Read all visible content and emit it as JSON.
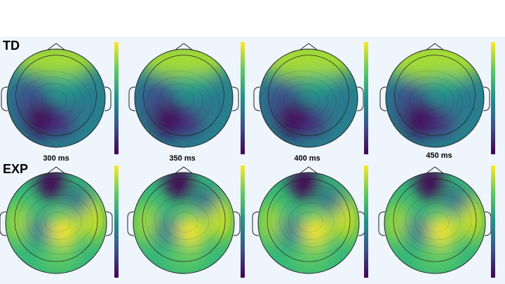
{
  "rows": [
    {
      "label": "TD"
    },
    {
      "label": "EXP"
    }
  ],
  "time_labels": [
    "300 ms",
    "350 ms",
    "400 ms",
    "450 ms"
  ]
}
